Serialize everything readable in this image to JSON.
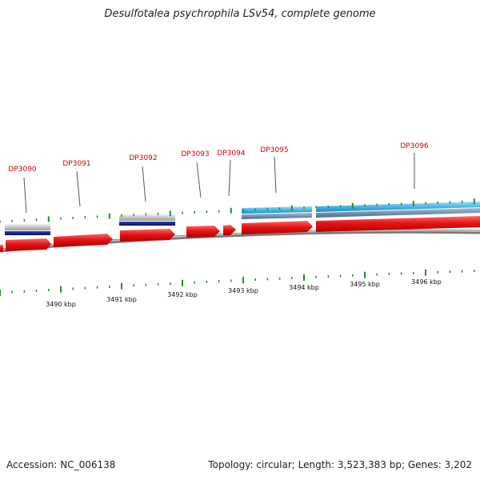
{
  "title": "Desulfotalea psychrophila LSv54, complete genome",
  "footer": {
    "accession": "Accession: NC_006138",
    "summary": "Topology: circular; Length: 3,523,383 bp; Genes: 3,202"
  },
  "colors": {
    "gene_red": "#e01010",
    "gene_label": "#cc0000",
    "tick_green": "#2a8a2a",
    "navy": "#0a1a80",
    "gray_band": "#b8b8b8",
    "cyan": "#1aa8e0",
    "steel": "#6f8fb0",
    "backbone": "#808080"
  },
  "genes": [
    {
      "label": "DP3090"
    },
    {
      "label": "DP3091"
    },
    {
      "label": "DP3092"
    },
    {
      "label": "DP3093"
    },
    {
      "label": "DP3094"
    },
    {
      "label": "DP3095"
    },
    {
      "label": "DP3096"
    }
  ],
  "scale_labels": [
    "3490 kbp",
    "3491 kbp",
    "3492 kbp",
    "3493 kbp",
    "3494 kbp",
    "3495 kbp",
    "3496 kbp"
  ]
}
